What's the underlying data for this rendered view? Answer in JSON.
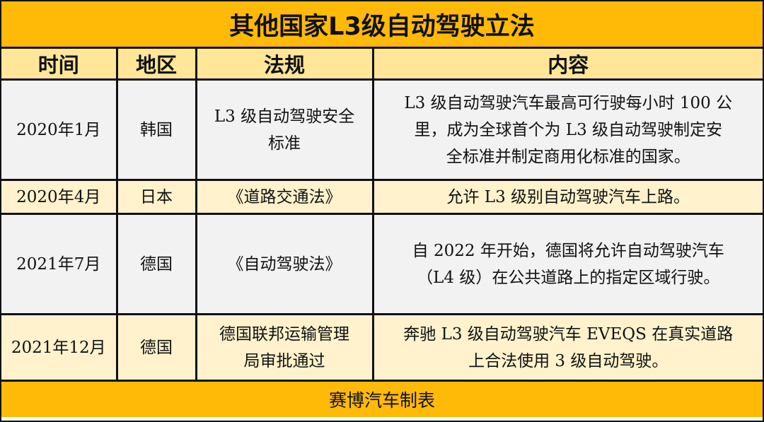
{
  "title": "其他国家L3级自动驾驶立法",
  "headers": [
    "时间",
    "地区",
    "法规",
    "内容"
  ],
  "rows": [
    {
      "time": "2020年1月",
      "region": "韩国",
      "law": [
        "L3 级自动驾驶安全",
        "标准"
      ],
      "content": [
        "L3 级自动驾驶汽车最高可行驶每小时 100 公",
        "里，成为全球首个为 L3 级自动驾驶制定安",
        "全标准并制定商用化标准的国家。"
      ]
    },
    {
      "time": "2020年4月",
      "region": "日本",
      "law": [
        "《道路交通法》"
      ],
      "content": [
        "允许 L3 级别自动驾驶汽车上路。"
      ]
    },
    {
      "time": "2021年7月",
      "region": "德国",
      "law": [
        "《自动驾驶法》"
      ],
      "content": [
        "自 2022 年开始，德国将允许自动驾驶汽车",
        "（L4 级）在公共道路上的指定区域行驶。"
      ]
    },
    {
      "time": "2021年12月",
      "region": "德国",
      "law": [
        "德国联邦运输管理",
        "局审批通过"
      ],
      "content": [
        "奔驰 L3 级自动驾驶汽车 EVEQS 在真实道路",
        "上合法使用 3 级自动驾驶。"
      ]
    }
  ],
  "footer": "赛博汽车制表",
  "colors": {
    "title_bg": "#FFBA08",
    "header_bg": "#FFE699",
    "row_gray": "#F2F2F2",
    "row_yellow": "#FFF2CC"
  }
}
